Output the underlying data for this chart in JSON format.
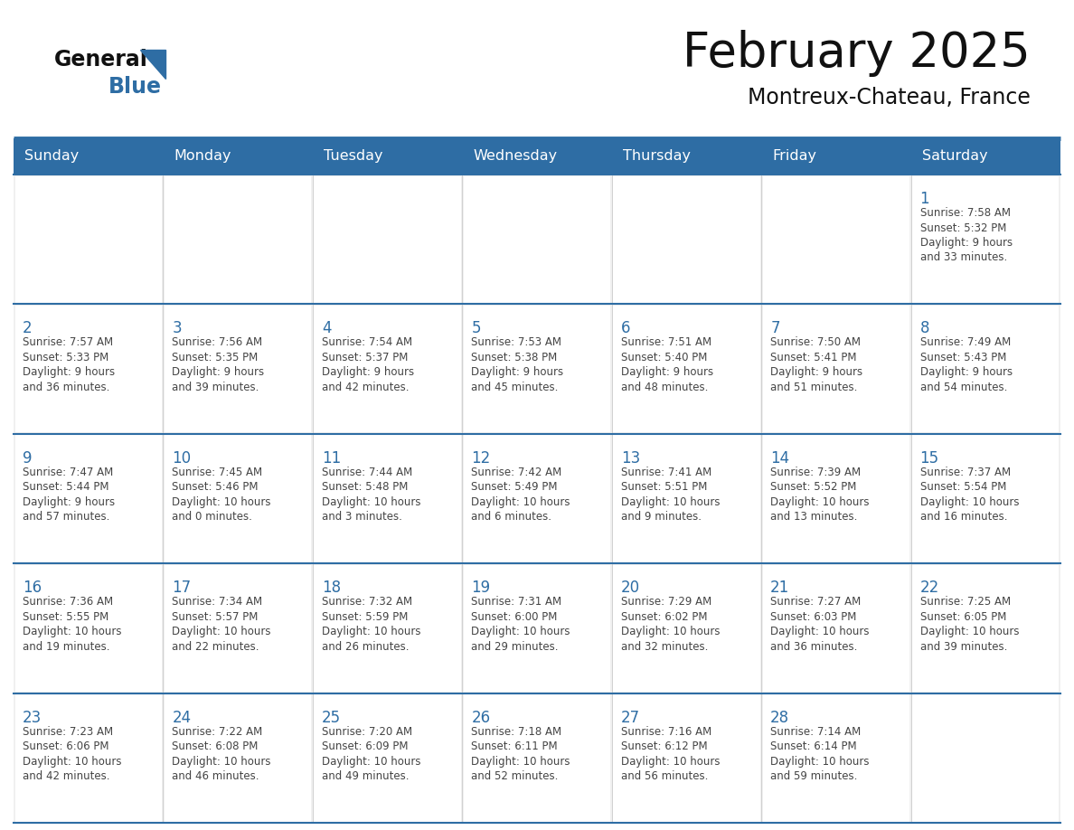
{
  "title": "February 2025",
  "subtitle": "Montreux-Chateau, France",
  "days_of_week": [
    "Sunday",
    "Monday",
    "Tuesday",
    "Wednesday",
    "Thursday",
    "Friday",
    "Saturday"
  ],
  "header_bg": "#2E6DA4",
  "header_text_color": "#FFFFFF",
  "cell_bg": "#F0F0F0",
  "day_number_color": "#2E6DA4",
  "text_color": "#444444",
  "line_color": "#2E6DA4",
  "weeks": [
    [
      {
        "day": null,
        "info": null
      },
      {
        "day": null,
        "info": null
      },
      {
        "day": null,
        "info": null
      },
      {
        "day": null,
        "info": null
      },
      {
        "day": null,
        "info": null
      },
      {
        "day": null,
        "info": null
      },
      {
        "day": 1,
        "info": "Sunrise: 7:58 AM\nSunset: 5:32 PM\nDaylight: 9 hours\nand 33 minutes."
      }
    ],
    [
      {
        "day": 2,
        "info": "Sunrise: 7:57 AM\nSunset: 5:33 PM\nDaylight: 9 hours\nand 36 minutes."
      },
      {
        "day": 3,
        "info": "Sunrise: 7:56 AM\nSunset: 5:35 PM\nDaylight: 9 hours\nand 39 minutes."
      },
      {
        "day": 4,
        "info": "Sunrise: 7:54 AM\nSunset: 5:37 PM\nDaylight: 9 hours\nand 42 minutes."
      },
      {
        "day": 5,
        "info": "Sunrise: 7:53 AM\nSunset: 5:38 PM\nDaylight: 9 hours\nand 45 minutes."
      },
      {
        "day": 6,
        "info": "Sunrise: 7:51 AM\nSunset: 5:40 PM\nDaylight: 9 hours\nand 48 minutes."
      },
      {
        "day": 7,
        "info": "Sunrise: 7:50 AM\nSunset: 5:41 PM\nDaylight: 9 hours\nand 51 minutes."
      },
      {
        "day": 8,
        "info": "Sunrise: 7:49 AM\nSunset: 5:43 PM\nDaylight: 9 hours\nand 54 minutes."
      }
    ],
    [
      {
        "day": 9,
        "info": "Sunrise: 7:47 AM\nSunset: 5:44 PM\nDaylight: 9 hours\nand 57 minutes."
      },
      {
        "day": 10,
        "info": "Sunrise: 7:45 AM\nSunset: 5:46 PM\nDaylight: 10 hours\nand 0 minutes."
      },
      {
        "day": 11,
        "info": "Sunrise: 7:44 AM\nSunset: 5:48 PM\nDaylight: 10 hours\nand 3 minutes."
      },
      {
        "day": 12,
        "info": "Sunrise: 7:42 AM\nSunset: 5:49 PM\nDaylight: 10 hours\nand 6 minutes."
      },
      {
        "day": 13,
        "info": "Sunrise: 7:41 AM\nSunset: 5:51 PM\nDaylight: 10 hours\nand 9 minutes."
      },
      {
        "day": 14,
        "info": "Sunrise: 7:39 AM\nSunset: 5:52 PM\nDaylight: 10 hours\nand 13 minutes."
      },
      {
        "day": 15,
        "info": "Sunrise: 7:37 AM\nSunset: 5:54 PM\nDaylight: 10 hours\nand 16 minutes."
      }
    ],
    [
      {
        "day": 16,
        "info": "Sunrise: 7:36 AM\nSunset: 5:55 PM\nDaylight: 10 hours\nand 19 minutes."
      },
      {
        "day": 17,
        "info": "Sunrise: 7:34 AM\nSunset: 5:57 PM\nDaylight: 10 hours\nand 22 minutes."
      },
      {
        "day": 18,
        "info": "Sunrise: 7:32 AM\nSunset: 5:59 PM\nDaylight: 10 hours\nand 26 minutes."
      },
      {
        "day": 19,
        "info": "Sunrise: 7:31 AM\nSunset: 6:00 PM\nDaylight: 10 hours\nand 29 minutes."
      },
      {
        "day": 20,
        "info": "Sunrise: 7:29 AM\nSunset: 6:02 PM\nDaylight: 10 hours\nand 32 minutes."
      },
      {
        "day": 21,
        "info": "Sunrise: 7:27 AM\nSunset: 6:03 PM\nDaylight: 10 hours\nand 36 minutes."
      },
      {
        "day": 22,
        "info": "Sunrise: 7:25 AM\nSunset: 6:05 PM\nDaylight: 10 hours\nand 39 minutes."
      }
    ],
    [
      {
        "day": 23,
        "info": "Sunrise: 7:23 AM\nSunset: 6:06 PM\nDaylight: 10 hours\nand 42 minutes."
      },
      {
        "day": 24,
        "info": "Sunrise: 7:22 AM\nSunset: 6:08 PM\nDaylight: 10 hours\nand 46 minutes."
      },
      {
        "day": 25,
        "info": "Sunrise: 7:20 AM\nSunset: 6:09 PM\nDaylight: 10 hours\nand 49 minutes."
      },
      {
        "day": 26,
        "info": "Sunrise: 7:18 AM\nSunset: 6:11 PM\nDaylight: 10 hours\nand 52 minutes."
      },
      {
        "day": 27,
        "info": "Sunrise: 7:16 AM\nSunset: 6:12 PM\nDaylight: 10 hours\nand 56 minutes."
      },
      {
        "day": 28,
        "info": "Sunrise: 7:14 AM\nSunset: 6:14 PM\nDaylight: 10 hours\nand 59 minutes."
      },
      {
        "day": null,
        "info": null
      }
    ]
  ]
}
